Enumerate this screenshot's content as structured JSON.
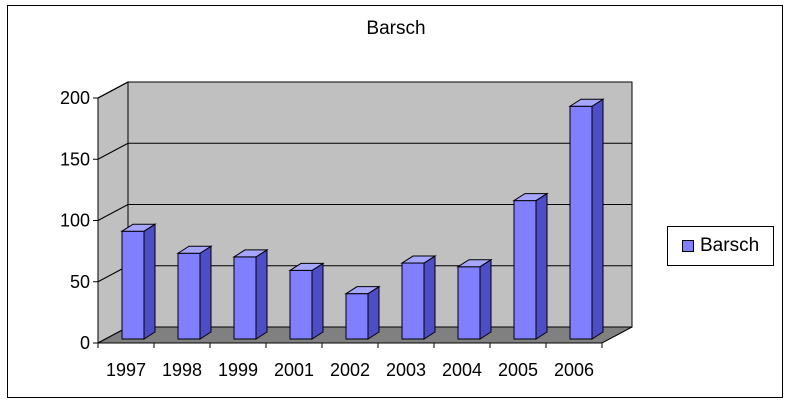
{
  "chart_data": {
    "type": "bar",
    "title": "Barsch",
    "categories": [
      "1997",
      "1998",
      "1999",
      "2001",
      "2002",
      "2003",
      "2004",
      "2005",
      "2006"
    ],
    "series": [
      {
        "name": "Barsch",
        "values": [
          88,
          70,
          67,
          56,
          37,
          62,
          59,
          113,
          190
        ],
        "color": "#8080ff"
      }
    ],
    "ylim": [
      0,
      200
    ],
    "yticks": [
      0,
      50,
      100,
      150,
      200
    ],
    "grid": true,
    "legend": "right",
    "style": "3d",
    "colors": {
      "wall": "#c0c0c0",
      "floor": "#808080",
      "bar_front": "#8080ff",
      "bar_side": "#4d4dc8",
      "bar_top": "#a6a6ff"
    }
  }
}
